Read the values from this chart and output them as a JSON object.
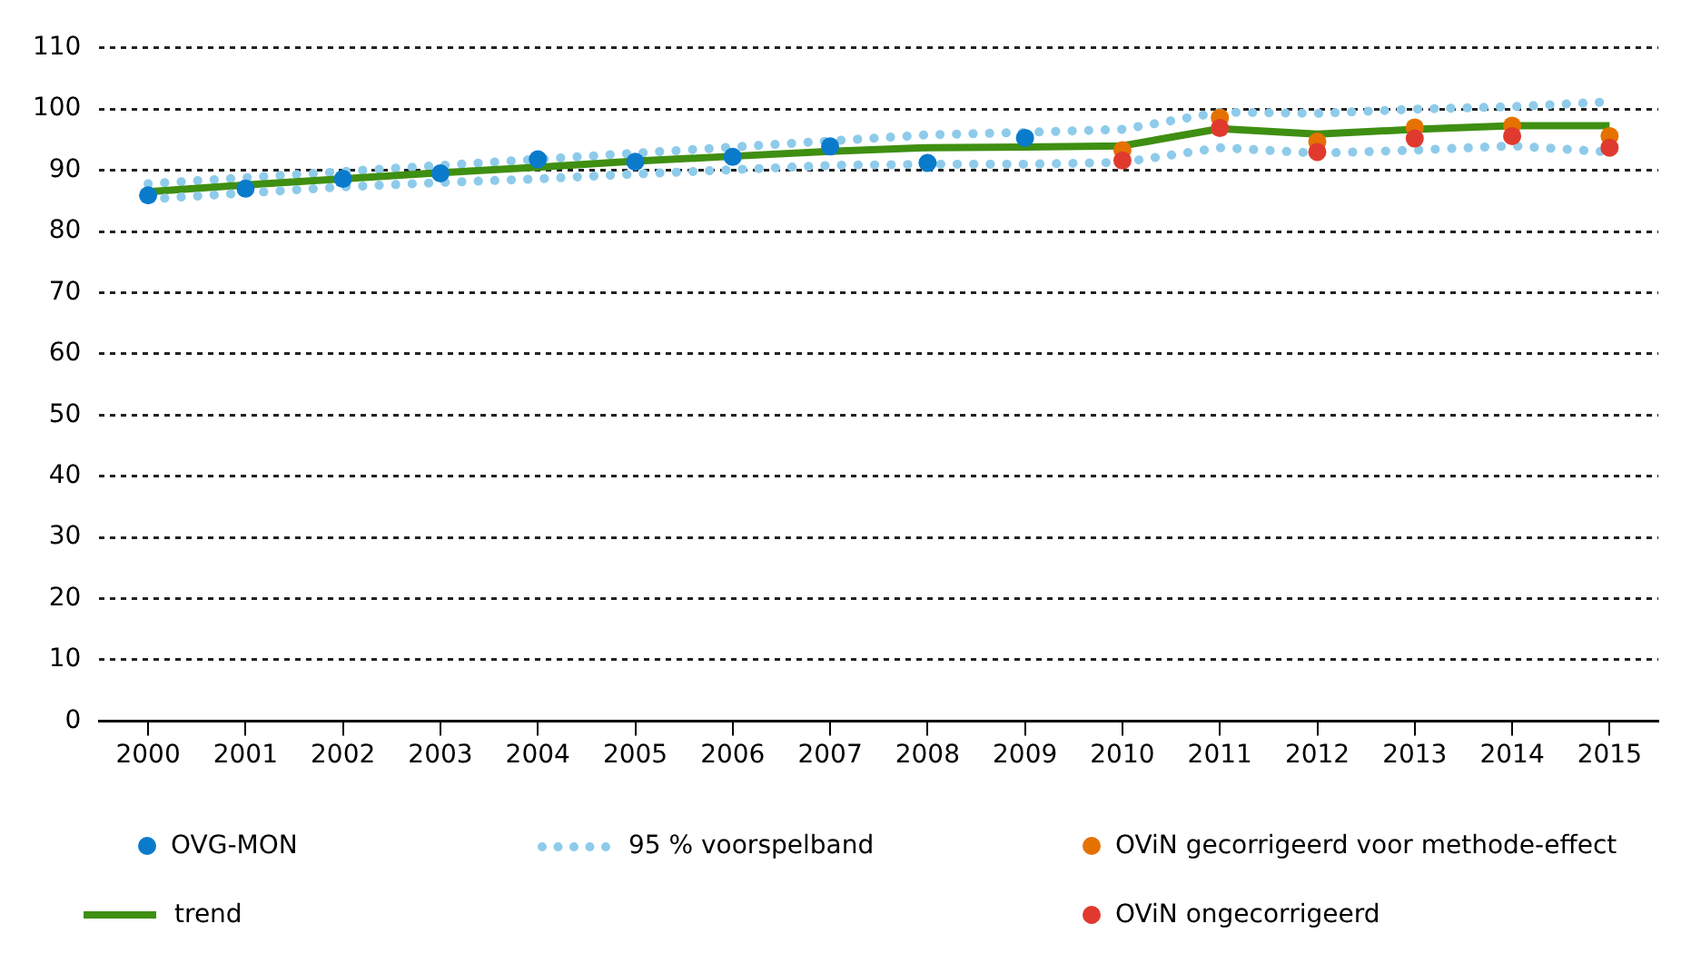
{
  "chart_data": {
    "type": "line",
    "categories": [
      "2000",
      "2001",
      "2002",
      "2003",
      "2004",
      "2005",
      "2006",
      "2007",
      "2008",
      "2009",
      "2010",
      "2011",
      "2012",
      "2013",
      "2014",
      "2015"
    ],
    "ylim": [
      0,
      110
    ],
    "yticks": [
      0,
      10,
      20,
      30,
      40,
      50,
      60,
      70,
      80,
      90,
      100,
      110
    ],
    "grid": "y",
    "legend": "bottom",
    "series": [
      {
        "name": "OVG-MON",
        "type": "scatter",
        "marker": "circle",
        "color": "#0a7bcb",
        "values": [
          85.9,
          87.0,
          88.6,
          89.5,
          91.8,
          91.4,
          92.2,
          93.9,
          91.2,
          95.3,
          null,
          null,
          null,
          null,
          null,
          null
        ]
      },
      {
        "name": "95 % voorspelband",
        "marker": "none",
        "line_style": "dotted",
        "color": "#8ecbea",
        "values": [
          87.8,
          88.8,
          89.8,
          90.8,
          91.8,
          92.8,
          93.8,
          94.8,
          95.8,
          96.2,
          96.7,
          99.5,
          99.3,
          100.0,
          100.4,
          101.2
        ]
      },
      {
        "name": "OViN gecorrigeerd voor methode-effect",
        "type": "scatter",
        "marker": "circle",
        "color": "#e57200",
        "values": [
          null,
          null,
          null,
          null,
          null,
          null,
          null,
          null,
          null,
          null,
          93.3,
          98.6,
          94.7,
          97.0,
          97.3,
          95.6
        ]
      },
      {
        "name": "trend",
        "marker": "none",
        "line_style": "solid",
        "color": "#3f8f12",
        "values": [
          86.5,
          87.6,
          88.6,
          89.6,
          90.5,
          91.5,
          92.3,
          93.1,
          93.7,
          93.8,
          94.0,
          96.8,
          95.9,
          96.7,
          97.3,
          97.3
        ]
      },
      {
        "name": "OViN ongecorrigeerd",
        "type": "scatter",
        "marker": "circle",
        "color": "#e03a2f",
        "values": [
          null,
          null,
          null,
          null,
          null,
          null,
          null,
          null,
          null,
          null,
          91.6,
          96.9,
          93.0,
          95.2,
          95.6,
          93.7
        ]
      },
      {
        "marker": "none",
        "line_style": "dotted",
        "color": "#8ecbea",
        "values": [
          85.3,
          86.3,
          87.3,
          88.0,
          88.6,
          89.4,
          90.1,
          90.8,
          91.0,
          91.0,
          91.3,
          93.7,
          92.8,
          93.3,
          94.0,
          93.0
        ]
      }
    ]
  }
}
